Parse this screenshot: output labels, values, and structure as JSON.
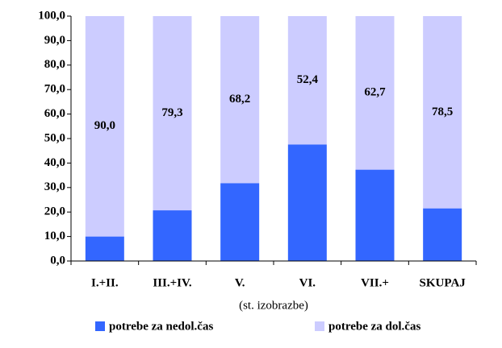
{
  "chart_data": {
    "type": "stacked_bar",
    "categories": [
      "I.+II.",
      "III.+IV.",
      "V.",
      "VI.",
      "VII.+",
      "SKUPAJ"
    ],
    "x_label": "(st. izobrazbe)",
    "series": [
      {
        "name": "potrebe za nedol.čas",
        "color": "#3366ff",
        "values": [
          10.0,
          20.7,
          31.8,
          47.6,
          37.3,
          21.5
        ]
      },
      {
        "name": "potrebe za dol.čas",
        "color": "#ccccff",
        "values": [
          90.0,
          79.3,
          68.2,
          52.4,
          62.7,
          78.5
        ],
        "value_labels": [
          "90,0",
          "79,3",
          "68,2",
          "52,4",
          "62,7",
          "78,5"
        ]
      }
    ],
    "ylim": [
      0,
      100
    ],
    "yticks": [
      {
        "value": 0,
        "label": "0,0"
      },
      {
        "value": 10,
        "label": "10,0"
      },
      {
        "value": 20,
        "label": "20,0"
      },
      {
        "value": 30,
        "label": "30,0"
      },
      {
        "value": 40,
        "label": "40,0"
      },
      {
        "value": 50,
        "label": "50,0"
      },
      {
        "value": 60,
        "label": "60,0"
      },
      {
        "value": 70,
        "label": "70,0"
      },
      {
        "value": 80,
        "label": "80,0"
      },
      {
        "value": 90,
        "label": "90,0"
      },
      {
        "value": 100,
        "label": "100,0"
      }
    ],
    "legend": "bottom"
  }
}
